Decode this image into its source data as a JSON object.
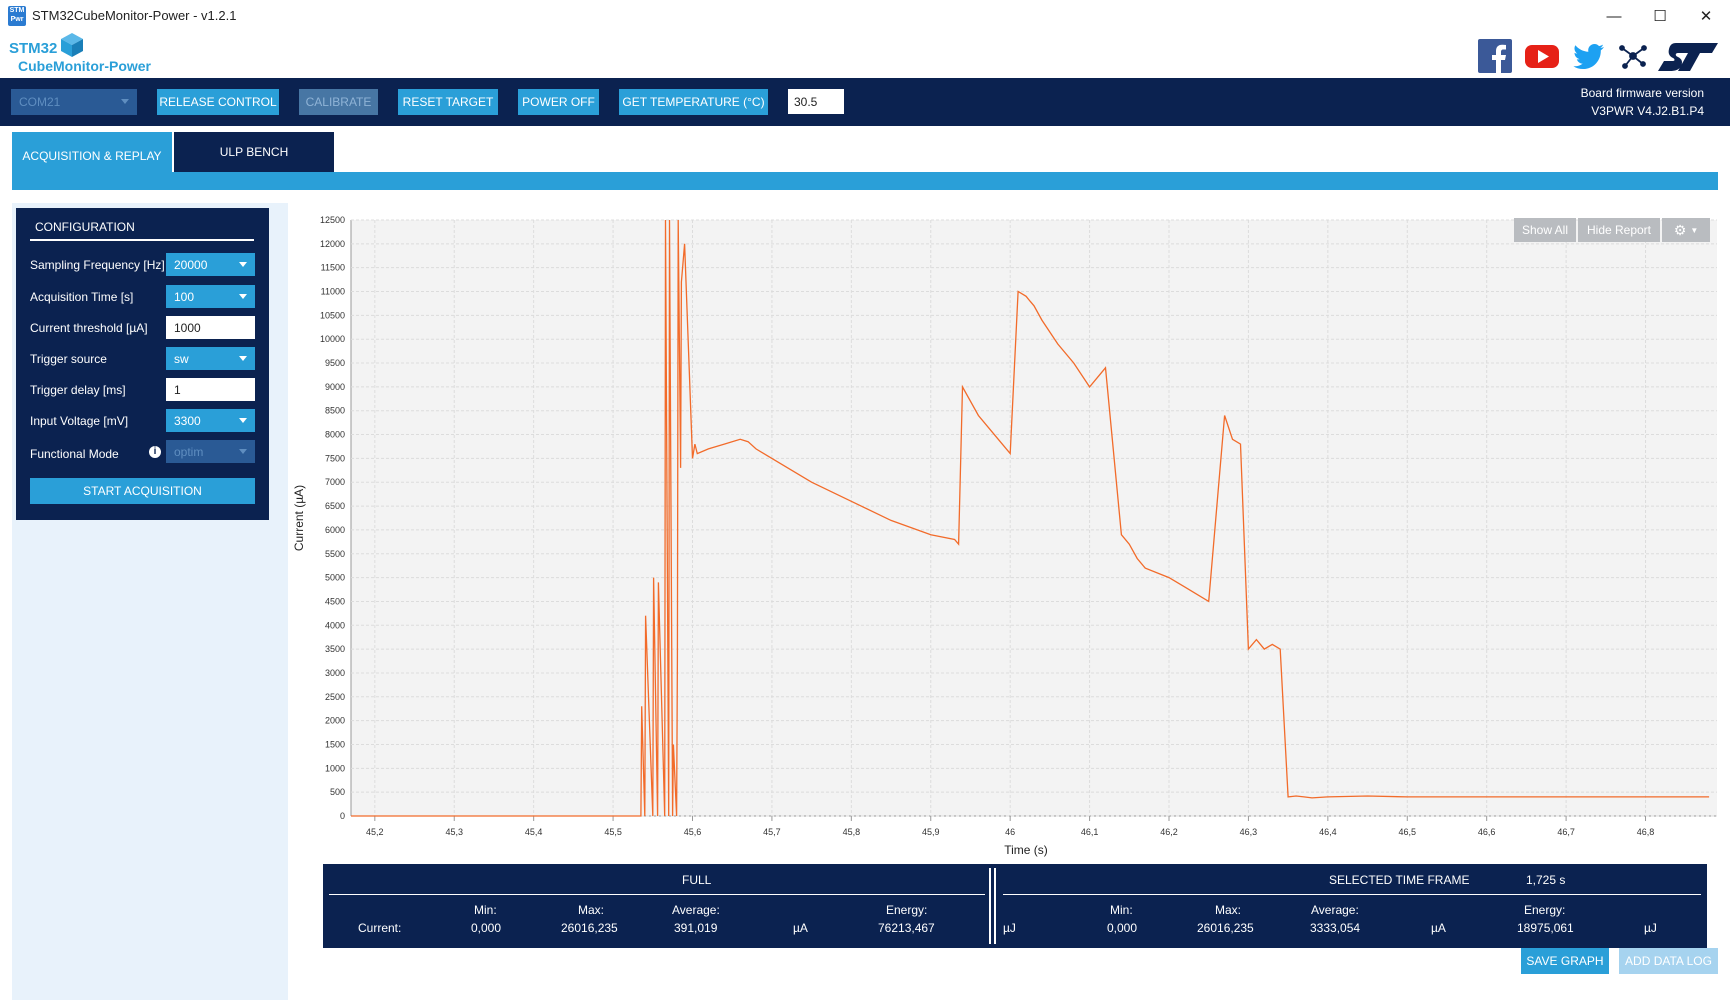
{
  "window": {
    "title": "STM32CubeMonitor-Power - v1.2.1",
    "icon_text": "STM Pwr",
    "controls": [
      "—",
      "☐",
      "✕"
    ]
  },
  "brand": {
    "logo_line1": "STM32",
    "logo_line2": "CubeMonitor-Power",
    "social_icons": [
      "facebook-icon",
      "youtube-icon",
      "twitter-icon",
      "network-icon",
      "st-logo"
    ]
  },
  "toolbar": {
    "com_port": "COM21",
    "release_control": "RELEASE CONTROL",
    "calibrate": "CALIBRATE",
    "reset_target": "RESET TARGET",
    "power_off": "POWER OFF",
    "get_temperature": "GET TEMPERATURE (°C)",
    "temperature_value": "30.5",
    "fw_label": "Board firmware version",
    "fw_version": "V3PWR V4.J2.B1.P4"
  },
  "tabs": [
    {
      "label": "ACQUISITION & REPLAY",
      "active": true
    },
    {
      "label": "ULP BENCH",
      "active": false
    }
  ],
  "config": {
    "title": "CONFIGURATION",
    "fields": [
      {
        "label": "Sampling Frequency [Hz]",
        "value": "20000",
        "kind": "select"
      },
      {
        "label": "Acquisition Time [s]",
        "value": "100",
        "kind": "select"
      },
      {
        "label": "Current threshold [µA]",
        "value": "1000",
        "kind": "input"
      },
      {
        "label": "Trigger source",
        "value": "sw",
        "kind": "select"
      },
      {
        "label": "Trigger delay [ms]",
        "value": "1",
        "kind": "input"
      },
      {
        "label": "Input Voltage [mV]",
        "value": "3300",
        "kind": "select"
      },
      {
        "label": "Functional Mode",
        "value": "optim",
        "kind": "select-disabled"
      }
    ],
    "start_button": "START ACQUISITION"
  },
  "chart_buttons": {
    "show_all": "Show All",
    "hide_report": "Hide Report"
  },
  "chart_data": {
    "type": "line",
    "xlabel": "Time (s)",
    "ylabel": "Current (µA)",
    "xlim": [
      45.17,
      46.89
    ],
    "ylim": [
      0,
      12500
    ],
    "x_ticks": [
      "45,2",
      "45,3",
      "45,4",
      "45,5",
      "45,6",
      "45,7",
      "45,8",
      "45,9",
      "46",
      "46,1",
      "46,2",
      "46,3",
      "46,4",
      "46,5",
      "46,6",
      "46,7",
      "46,8"
    ],
    "y_ticks": [
      "0",
      "500",
      "1000",
      "1500",
      "2000",
      "2500",
      "3000",
      "3500",
      "4000",
      "4500",
      "5000",
      "5500",
      "6000",
      "6500",
      "7000",
      "7500",
      "8000",
      "8500",
      "9000",
      "9500",
      "10000",
      "10500",
      "11000",
      "11500",
      "12000",
      "12500"
    ],
    "color": "#f26b2a",
    "grid": true,
    "series": [
      {
        "x": [
          45.17,
          45.535,
          45.536,
          45.54,
          45.541,
          45.55,
          45.551,
          45.556,
          45.557,
          45.565,
          45.566,
          45.57,
          45.571,
          45.575,
          45.576,
          45.58,
          45.581,
          45.582,
          45.585,
          45.586,
          45.59,
          45.6,
          45.603,
          45.606,
          45.62,
          45.64,
          45.66,
          45.67,
          45.68,
          45.7,
          45.75,
          45.8,
          45.85,
          45.9,
          45.93,
          45.935,
          45.94,
          45.96,
          45.98,
          46.0,
          46.01,
          46.02,
          46.025,
          46.03,
          46.04,
          46.06,
          46.08,
          46.1,
          46.12,
          46.14,
          46.15,
          46.16,
          46.17,
          46.2,
          46.22,
          46.25,
          46.27,
          46.28,
          46.29,
          46.3,
          46.31,
          46.32,
          46.33,
          46.34,
          46.35,
          46.36,
          46.37,
          46.38,
          46.4,
          46.45,
          46.5,
          46.6,
          46.7,
          46.8,
          46.88
        ],
        "y": [
          0,
          0,
          2300,
          0,
          4200,
          0,
          5000,
          0,
          4900,
          0,
          12500,
          0,
          12500,
          0,
          1500,
          0,
          3300,
          12500,
          7300,
          11200,
          12000,
          7500,
          7800,
          7600,
          7700,
          7800,
          7900,
          7850,
          7700,
          7500,
          7000,
          6600,
          6200,
          5900,
          5800,
          5700,
          9000,
          8400,
          8000,
          7600,
          11000,
          10900,
          10800,
          10700,
          10400,
          9900,
          9500,
          9000,
          9400,
          5900,
          5700,
          5400,
          5200,
          5000,
          4800,
          4500,
          8400,
          7900,
          7800,
          3500,
          3700,
          3500,
          3600,
          3500,
          400,
          420,
          400,
          380,
          400,
          420,
          400,
          400,
          400,
          400,
          400
        ]
      }
    ]
  },
  "report": {
    "full_title": "FULL",
    "selected_title": "SELECTED TIME FRAME",
    "selected_duration": "1,725 s",
    "row_label": "Current:",
    "headers": {
      "min": "Min:",
      "max": "Max:",
      "average": "Average:",
      "energy": "Energy:"
    },
    "full": {
      "min": "0,000",
      "max": "26016,235",
      "average": "391,019",
      "avg_unit": "µA",
      "energy": "76213,467",
      "energy_unit": "µJ"
    },
    "selected": {
      "min": "0,000",
      "max": "26016,235",
      "average": "3333,054",
      "avg_unit": "µA",
      "energy": "18975,061",
      "energy_unit": "µJ"
    }
  },
  "bottom_buttons": {
    "save_graph": "SAVE GRAPH",
    "add_data_log": "ADD DATA LOG"
  }
}
